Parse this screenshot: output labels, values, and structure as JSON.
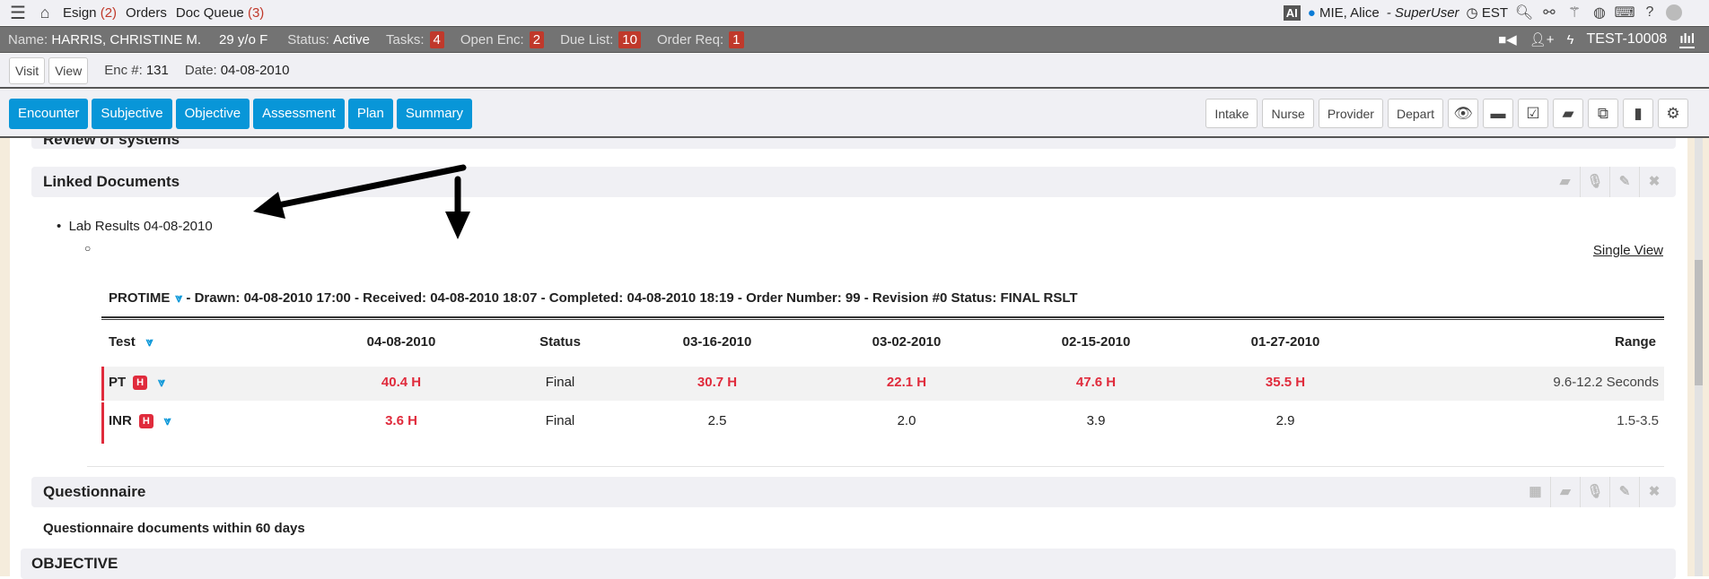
{
  "topnav": {
    "esign": "Esign",
    "esign_count": "(2)",
    "orders": "Orders",
    "doc_queue": "Doc Queue",
    "doc_queue_count": "(3)",
    "ai": "AI",
    "user": "MIE, Alice",
    "role": "- SuperUser",
    "timezone": "EST"
  },
  "patient": {
    "name_label": "Name:",
    "name": "HARRIS, CHRISTINE M.",
    "age": "29 y/o F",
    "status_label": "Status:",
    "status": "Active",
    "tasks_label": "Tasks:",
    "tasks": "4",
    "open_enc_label": "Open Enc:",
    "open_enc": "2",
    "due_list_label": "Due List:",
    "due_list": "10",
    "order_req_label": "Order Req:",
    "order_req": "1",
    "test_id": "TEST-10008"
  },
  "encounter": {
    "visit": "Visit",
    "view": "View",
    "enc_label": "Enc #:",
    "enc": "131",
    "date_label": "Date:",
    "date": "04-08-2010"
  },
  "tabs": [
    "Encounter",
    "Subjective",
    "Objective",
    "Assessment",
    "Plan",
    "Summary"
  ],
  "role_buttons": [
    "Intake",
    "Nurse",
    "Provider",
    "Depart"
  ],
  "sections": {
    "review": "Review of systems",
    "linked": "Linked Documents",
    "questionnaire": "Questionnaire",
    "questionnaire_note": "Questionnaire documents within 60 days",
    "objective": "OBJECTIVE"
  },
  "linked": {
    "item": "Lab Results 04-08-2010",
    "single_view": "Single View",
    "protime": "PROTIME",
    "protime_detail": "- Drawn: 04-08-2010 17:00 - Received: 04-08-2010 18:07 - Completed: 04-08-2010 18:19 - Order Number: 99 - Revision #0 Status: FINAL RSLT"
  },
  "lab_table": {
    "headers": [
      "Test",
      "04-08-2010",
      "Status",
      "03-16-2010",
      "03-02-2010",
      "02-15-2010",
      "01-27-2010",
      "Range"
    ],
    "rows": [
      {
        "test": "PT",
        "flag": "H",
        "values": [
          "40.4 H",
          "Final",
          "30.7 H",
          "22.1 H",
          "47.6 H",
          "35.5 H",
          "9.6-12.2 Seconds"
        ],
        "high": [
          true,
          false,
          true,
          true,
          true,
          true,
          false
        ]
      },
      {
        "test": "INR",
        "flag": "H",
        "values": [
          "3.6 H",
          "Final",
          "2.5",
          "2.0",
          "3.9",
          "2.9",
          "1.5-3.5"
        ],
        "high": [
          true,
          false,
          false,
          false,
          false,
          false,
          false
        ]
      }
    ]
  },
  "colors": {
    "accent": "#0896d8",
    "alert": "#e02b3c",
    "bar": "#737373"
  }
}
